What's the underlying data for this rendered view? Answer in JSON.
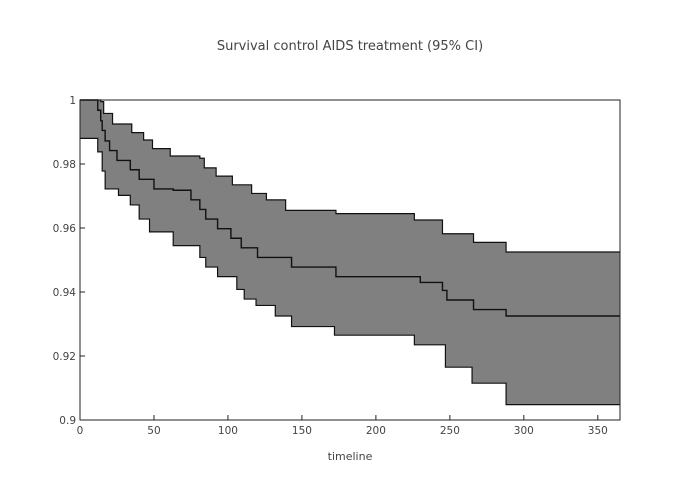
{
  "chart_data": {
    "type": "area",
    "title": "Survival control AIDS treatment (95% CI)",
    "xlabel": "timeline",
    "ylabel": "",
    "xlim": [
      0,
      365
    ],
    "ylim": [
      0.9,
      1.0
    ],
    "grid": false,
    "x_ticks": [
      "0",
      "50",
      "100",
      "150",
      "200",
      "250",
      "300",
      "350"
    ],
    "y_ticks": [
      "0.9",
      "0.92",
      "0.94",
      "0.96",
      "0.98",
      "1"
    ],
    "series": [
      {
        "role": "survival_estimate",
        "steps": [
          [
            0,
            1.0
          ],
          [
            12,
            0.9968
          ],
          [
            14,
            0.9935
          ],
          [
            15,
            0.9905
          ],
          [
            17,
            0.9872
          ],
          [
            20,
            0.9842
          ],
          [
            25,
            0.9811
          ],
          [
            34,
            0.9782
          ],
          [
            40,
            0.9752
          ],
          [
            50,
            0.9722
          ],
          [
            63,
            0.9718
          ],
          [
            75,
            0.9688
          ],
          [
            81,
            0.9658
          ],
          [
            85,
            0.9628
          ],
          [
            93,
            0.9598
          ],
          [
            102,
            0.9568
          ],
          [
            109,
            0.9538
          ],
          [
            120,
            0.9508
          ],
          [
            143,
            0.9478
          ],
          [
            173,
            0.9448
          ],
          [
            225,
            0.9448
          ],
          [
            230,
            0.943
          ],
          [
            245,
            0.9405
          ],
          [
            248,
            0.9375
          ],
          [
            266,
            0.9345
          ],
          [
            288,
            0.9325
          ],
          [
            365,
            0.9325
          ]
        ]
      },
      {
        "role": "upper_ci_95",
        "steps": [
          [
            0,
            1.0
          ],
          [
            14,
            0.9995
          ],
          [
            16,
            0.9958
          ],
          [
            22,
            0.9925
          ],
          [
            35,
            0.9898
          ],
          [
            43,
            0.9875
          ],
          [
            49,
            0.9848
          ],
          [
            61,
            0.9825
          ],
          [
            81,
            0.9818
          ],
          [
            84,
            0.9788
          ],
          [
            92,
            0.9762
          ],
          [
            103,
            0.9735
          ],
          [
            116,
            0.9708
          ],
          [
            126,
            0.9688
          ],
          [
            139,
            0.9655
          ],
          [
            173,
            0.9645
          ],
          [
            226,
            0.9625
          ],
          [
            245,
            0.9582
          ],
          [
            266,
            0.9555
          ],
          [
            288,
            0.9525
          ],
          [
            365,
            0.9525
          ]
        ]
      },
      {
        "role": "lower_ci_95",
        "steps": [
          [
            0,
            0.988
          ],
          [
            12,
            0.9838
          ],
          [
            15,
            0.9778
          ],
          [
            17,
            0.9722
          ],
          [
            26,
            0.9702
          ],
          [
            34,
            0.9672
          ],
          [
            40,
            0.9628
          ],
          [
            47,
            0.9588
          ],
          [
            63,
            0.9545
          ],
          [
            81,
            0.9508
          ],
          [
            85,
            0.9478
          ],
          [
            93,
            0.9448
          ],
          [
            106,
            0.9408
          ],
          [
            111,
            0.9378
          ],
          [
            119,
            0.9358
          ],
          [
            132,
            0.9325
          ],
          [
            143,
            0.9292
          ],
          [
            172,
            0.9265
          ],
          [
            226,
            0.9235
          ],
          [
            247,
            0.9165
          ],
          [
            265,
            0.9115
          ],
          [
            288,
            0.9048
          ],
          [
            365,
            0.9048
          ]
        ]
      }
    ]
  }
}
